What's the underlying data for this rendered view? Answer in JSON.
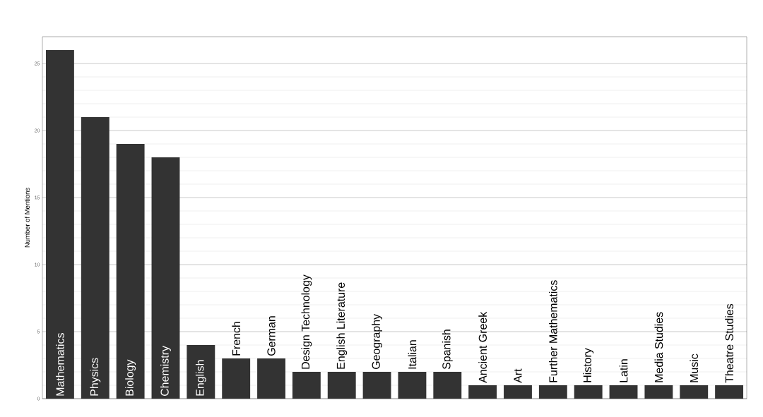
{
  "chart_data": {
    "type": "bar",
    "ylabel": "Number of Mentions",
    "categories": [
      "Mathematics",
      "Physics",
      "Biology",
      "Chemistry",
      "English",
      "French",
      "German",
      "Design Technology",
      "English Literature",
      "Geography",
      "Italian",
      "Spanish",
      "Ancient Greek",
      "Art",
      "Further Mathematics",
      "History",
      "Latin",
      "Media Studies",
      "Music",
      "Theatre Studies"
    ],
    "values": [
      26,
      21,
      19,
      18,
      4,
      3,
      3,
      2,
      2,
      2,
      2,
      2,
      1,
      1,
      1,
      1,
      1,
      1,
      1,
      1
    ],
    "color": "#333333",
    "ylim": [
      0,
      27
    ],
    "yticks": [
      0,
      5,
      10,
      15,
      20,
      25
    ],
    "grid": "y"
  }
}
